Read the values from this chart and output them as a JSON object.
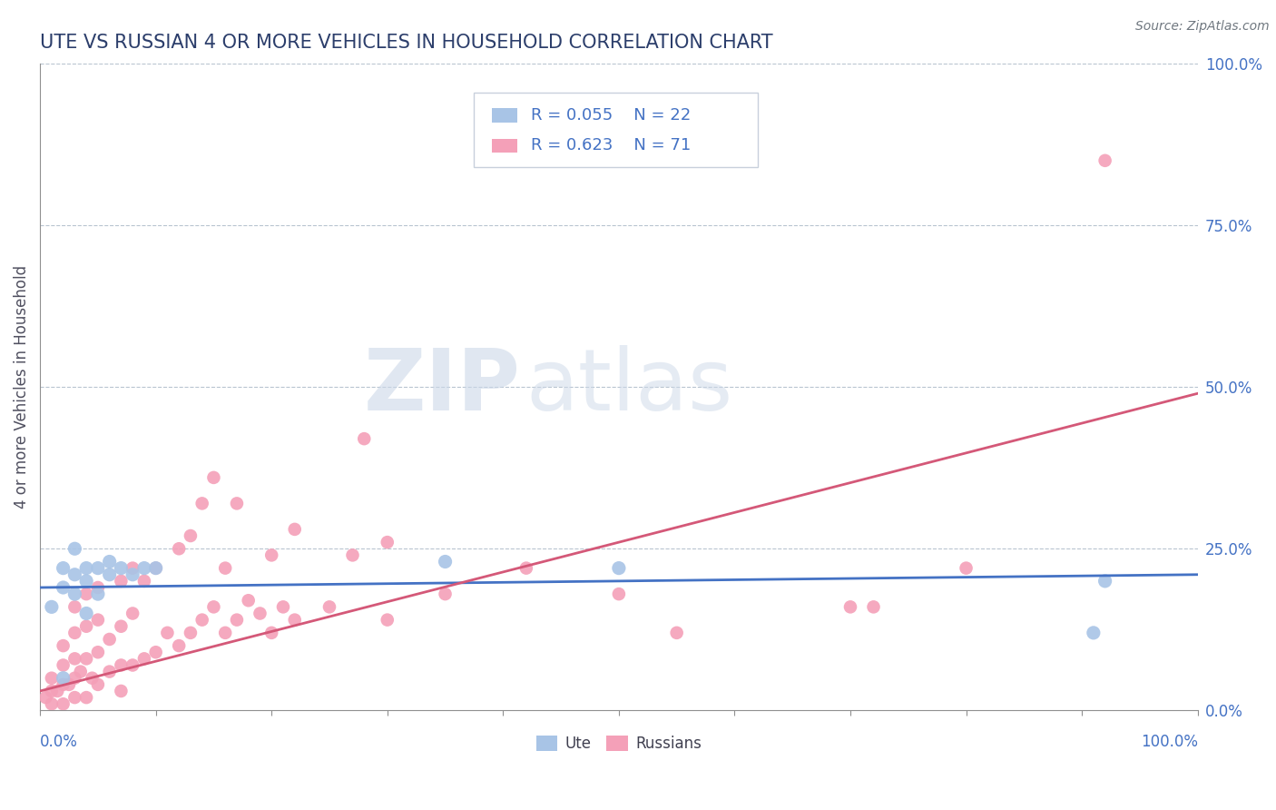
{
  "title": "UTE VS RUSSIAN 4 OR MORE VEHICLES IN HOUSEHOLD CORRELATION CHART",
  "source": "Source: ZipAtlas.com",
  "ylabel": "4 or more Vehicles in Household",
  "legend_ute_R": "R = 0.055",
  "legend_ute_N": "N = 22",
  "legend_rus_R": "R = 0.623",
  "legend_rus_N": "N = 71",
  "legend_label_ute": "Ute",
  "legend_label_rus": "Russians",
  "ute_color": "#a8c4e6",
  "rus_color": "#f4a0b8",
  "ute_line_color": "#4472c4",
  "rus_line_color": "#d45878",
  "watermark_zip": "ZIP",
  "watermark_atlas": "atlas",
  "xlim": [
    0,
    1
  ],
  "ylim": [
    0,
    1
  ],
  "ute_x": [
    0.01,
    0.02,
    0.02,
    0.02,
    0.03,
    0.03,
    0.03,
    0.04,
    0.04,
    0.04,
    0.05,
    0.05,
    0.06,
    0.06,
    0.07,
    0.08,
    0.09,
    0.1,
    0.35,
    0.5,
    0.91,
    0.92
  ],
  "ute_y": [
    0.16,
    0.05,
    0.19,
    0.22,
    0.18,
    0.21,
    0.25,
    0.15,
    0.2,
    0.22,
    0.18,
    0.22,
    0.21,
    0.23,
    0.22,
    0.21,
    0.22,
    0.22,
    0.23,
    0.22,
    0.12,
    0.2
  ],
  "rus_x": [
    0.005,
    0.01,
    0.01,
    0.01,
    0.015,
    0.02,
    0.02,
    0.02,
    0.02,
    0.025,
    0.03,
    0.03,
    0.03,
    0.03,
    0.03,
    0.035,
    0.04,
    0.04,
    0.04,
    0.04,
    0.045,
    0.05,
    0.05,
    0.05,
    0.05,
    0.06,
    0.06,
    0.07,
    0.07,
    0.07,
    0.07,
    0.08,
    0.08,
    0.08,
    0.09,
    0.09,
    0.1,
    0.1,
    0.11,
    0.12,
    0.12,
    0.13,
    0.13,
    0.14,
    0.14,
    0.15,
    0.15,
    0.16,
    0.16,
    0.17,
    0.17,
    0.18,
    0.19,
    0.2,
    0.2,
    0.21,
    0.22,
    0.22,
    0.25,
    0.27,
    0.28,
    0.3,
    0.3,
    0.35,
    0.42,
    0.5,
    0.55,
    0.7,
    0.72,
    0.8,
    0.92
  ],
  "rus_y": [
    0.02,
    0.01,
    0.03,
    0.05,
    0.03,
    0.01,
    0.04,
    0.07,
    0.1,
    0.04,
    0.02,
    0.05,
    0.08,
    0.12,
    0.16,
    0.06,
    0.02,
    0.08,
    0.13,
    0.18,
    0.05,
    0.04,
    0.09,
    0.14,
    0.19,
    0.06,
    0.11,
    0.03,
    0.07,
    0.13,
    0.2,
    0.07,
    0.15,
    0.22,
    0.08,
    0.2,
    0.09,
    0.22,
    0.12,
    0.1,
    0.25,
    0.12,
    0.27,
    0.14,
    0.32,
    0.16,
    0.36,
    0.12,
    0.22,
    0.14,
    0.32,
    0.17,
    0.15,
    0.12,
    0.24,
    0.16,
    0.14,
    0.28,
    0.16,
    0.24,
    0.42,
    0.14,
    0.26,
    0.18,
    0.22,
    0.18,
    0.12,
    0.16,
    0.16,
    0.22,
    0.85
  ],
  "ute_line": [
    0.0,
    1.0,
    0.19,
    0.21
  ],
  "rus_line": [
    0.0,
    1.0,
    0.03,
    0.49
  ]
}
